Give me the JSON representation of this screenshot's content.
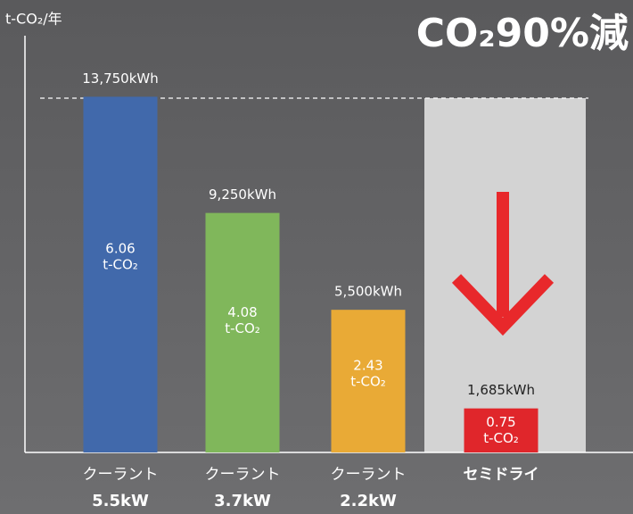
{
  "chart_data": {
    "type": "bar",
    "title": "CO₂90%減",
    "y_label": "t-CO₂/年",
    "categories": [
      "クーラント",
      "クーラント",
      "クーラント",
      "セミドライ"
    ],
    "category_sublabels": [
      "5.5kW",
      "3.7kW",
      "2.2kW",
      null
    ],
    "values": [
      6.06,
      4.08,
      2.43,
      0.75
    ],
    "value_unit": "t-CO₂",
    "energy_labels": [
      "13,750kWh",
      "9,250kWh",
      "5,500kWh",
      "1,685kWh"
    ],
    "colors": [
      "#4169ab",
      "#80b75b",
      "#e9aa36",
      "#e0262b"
    ],
    "ylim": [
      0,
      7.1
    ]
  }
}
